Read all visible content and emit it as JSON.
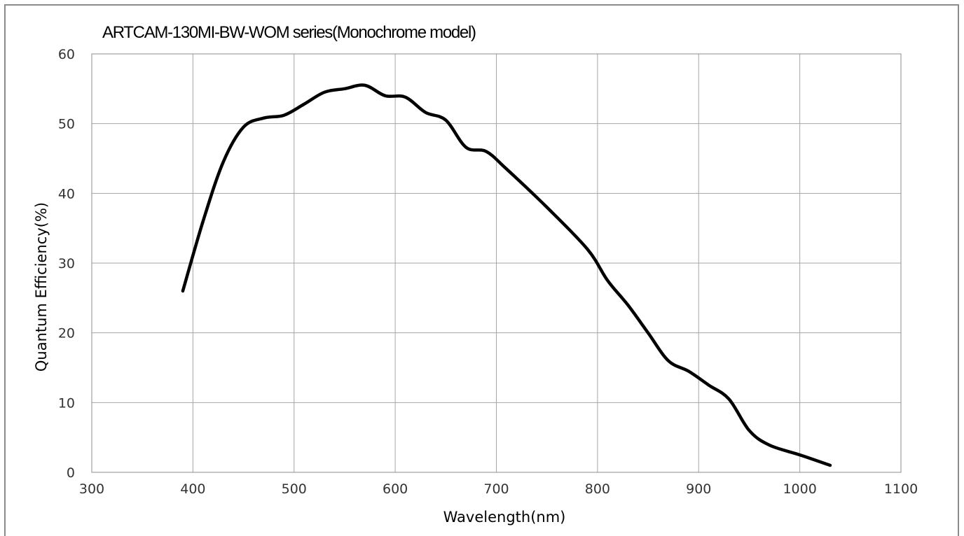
{
  "chart_data": {
    "type": "line",
    "title": "ARTCAM-130MI-BW-WOM series(Monochrome model)",
    "xlabel": "Wavelength(nm)",
    "ylabel": "Quantum  Efficiency(%)",
    "xlim": [
      300,
      1100
    ],
    "ylim": [
      0,
      60
    ],
    "xticks": [
      300,
      400,
      500,
      600,
      700,
      800,
      900,
      1000,
      1100
    ],
    "yticks": [
      0,
      10,
      20,
      30,
      40,
      50,
      60
    ],
    "grid": true,
    "legend": "none",
    "series": [
      {
        "color": "#000000",
        "x": [
          390,
          410,
          430,
          450,
          470,
          490,
          510,
          530,
          550,
          570,
          590,
          610,
          630,
          650,
          670,
          690,
          710,
          750,
          790,
          810,
          830,
          850,
          870,
          890,
          910,
          930,
          950,
          970,
          1000,
          1030
        ],
        "y": [
          26,
          36,
          44.5,
          49.5,
          50.8,
          51.2,
          52.8,
          54.5,
          55,
          55.5,
          54,
          53.8,
          51.6,
          50.5,
          46.6,
          46,
          43.5,
          38,
          32,
          27.5,
          24,
          20,
          16,
          14.5,
          12.5,
          10.5,
          6,
          3.9,
          2.5,
          1
        ]
      }
    ]
  }
}
